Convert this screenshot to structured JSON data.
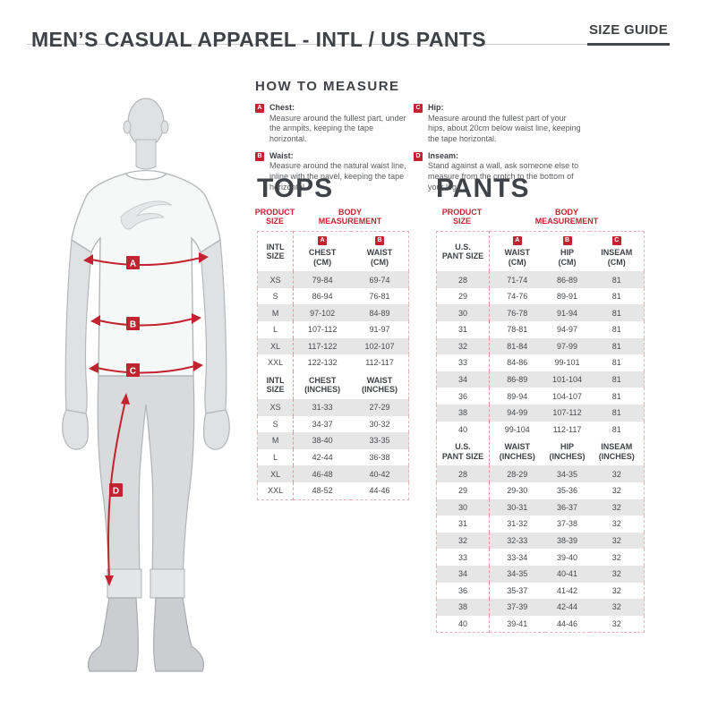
{
  "page": {
    "title": "MEN’S CASUAL APPAREL - INTL / US PANTS",
    "size_guide_label": "SIZE GUIDE"
  },
  "colors": {
    "accent_red": "#c32330",
    "text_dark": "#3f4247",
    "stripe_gray": "#e6e6e6",
    "table_border_pink": "#e6b2b7"
  },
  "figure": {
    "markers": [
      "A",
      "B",
      "C",
      "D"
    ]
  },
  "how_to_measure": {
    "heading": "HOW TO MEASURE",
    "items": [
      {
        "badge": "A",
        "label": "Chest:",
        "text": "Measure around the fullest part, under the armpits, keeping the tape horizontal."
      },
      {
        "badge": "B",
        "label": "Waist:",
        "text": "Measure around the natural waist line, inline with the navel, keeping the tape horizontal."
      },
      {
        "badge": "C",
        "label": "Hip:",
        "text": "Measure around the fullest part of your hips, about 20cm below waist line, keeping the tape horizontal."
      },
      {
        "badge": "D",
        "label": "Inseam:",
        "text": "Stand against a wall, ask someone else to measure from the crotch to the bottom of your leg."
      }
    ]
  },
  "tops": {
    "heading": "TOPS",
    "col1_label": "PRODUCT\nSIZE",
    "col2_label": "BODY\nMEASUREMENT",
    "sections": [
      {
        "type": "header",
        "cells": [
          {
            "text": "INTL\nSIZE"
          },
          {
            "badge": "A",
            "text": "CHEST\n(CM)"
          },
          {
            "badge": "B",
            "text": "WAIST\n(CM)"
          }
        ]
      },
      {
        "type": "row",
        "cells": [
          "XS",
          "79-84",
          "69-74"
        ]
      },
      {
        "type": "row",
        "cells": [
          "S",
          "86-94",
          "76-81"
        ]
      },
      {
        "type": "row",
        "cells": [
          "M",
          "97-102",
          "84-89"
        ]
      },
      {
        "type": "row",
        "cells": [
          "L",
          "107-112",
          "91-97"
        ]
      },
      {
        "type": "row",
        "cells": [
          "XL",
          "117-122",
          "102-107"
        ]
      },
      {
        "type": "row",
        "cells": [
          "XXL",
          "122-132",
          "112-117"
        ]
      },
      {
        "type": "header",
        "cells": [
          {
            "text": "INTL\nSIZE"
          },
          {
            "text": "CHEST\n(INCHES)"
          },
          {
            "text": "WAIST\n(INCHES)"
          }
        ]
      },
      {
        "type": "row",
        "cells": [
          "XS",
          "31-33",
          "27-29"
        ]
      },
      {
        "type": "row",
        "cells": [
          "S",
          "34-37",
          "30-32"
        ]
      },
      {
        "type": "row",
        "cells": [
          "M",
          "38-40",
          "33-35"
        ]
      },
      {
        "type": "row",
        "cells": [
          "L",
          "42-44",
          "36-38"
        ]
      },
      {
        "type": "row",
        "cells": [
          "XL",
          "46-48",
          "40-42"
        ]
      },
      {
        "type": "row",
        "cells": [
          "XXL",
          "48-52",
          "44-46"
        ]
      }
    ]
  },
  "pants": {
    "heading": "PANTS",
    "col1_label": "PRODUCT\nSIZE",
    "col2_label": "BODY\nMEASUREMENT",
    "sections": [
      {
        "type": "header",
        "cells": [
          {
            "text": "U.S.\nPANT SIZE"
          },
          {
            "badge": "A",
            "text": "WAIST\n(CM)"
          },
          {
            "badge": "B",
            "text": "HIP\n(CM)"
          },
          {
            "badge": "C",
            "text": "INSEAM\n(CM)"
          }
        ]
      },
      {
        "type": "row",
        "cells": [
          "28",
          "71-74",
          "86-89",
          "81"
        ]
      },
      {
        "type": "row",
        "cells": [
          "29",
          "74-76",
          "89-91",
          "81"
        ]
      },
      {
        "type": "row",
        "cells": [
          "30",
          "76-78",
          "91-94",
          "81"
        ]
      },
      {
        "type": "row",
        "cells": [
          "31",
          "78-81",
          "94-97",
          "81"
        ]
      },
      {
        "type": "row",
        "cells": [
          "32",
          "81-84",
          "97-99",
          "81"
        ]
      },
      {
        "type": "row",
        "cells": [
          "33",
          "84-86",
          "99-101",
          "81"
        ]
      },
      {
        "type": "row",
        "cells": [
          "34",
          "86-89",
          "101-104",
          "81"
        ]
      },
      {
        "type": "row",
        "cells": [
          "36",
          "89-94",
          "104-107",
          "81"
        ]
      },
      {
        "type": "row",
        "cells": [
          "38",
          "94-99",
          "107-112",
          "81"
        ]
      },
      {
        "type": "row",
        "cells": [
          "40",
          "99-104",
          "112-117",
          "81"
        ]
      },
      {
        "type": "header",
        "cells": [
          {
            "text": "U.S.\nPANT SIZE"
          },
          {
            "text": "WAIST\n(INCHES)"
          },
          {
            "text": "HIP\n(INCHES)"
          },
          {
            "text": "INSEAM\n(INCHES)"
          }
        ]
      },
      {
        "type": "row",
        "cells": [
          "28",
          "28-29",
          "34-35",
          "32"
        ]
      },
      {
        "type": "row",
        "cells": [
          "29",
          "29-30",
          "35-36",
          "32"
        ]
      },
      {
        "type": "row",
        "cells": [
          "30",
          "30-31",
          "36-37",
          "32"
        ]
      },
      {
        "type": "row",
        "cells": [
          "31",
          "31-32",
          "37-38",
          "32"
        ]
      },
      {
        "type": "row",
        "cells": [
          "32",
          "32-33",
          "38-39",
          "32"
        ]
      },
      {
        "type": "row",
        "cells": [
          "33",
          "33-34",
          "39-40",
          "32"
        ]
      },
      {
        "type": "row",
        "cells": [
          "34",
          "34-35",
          "40-41",
          "32"
        ]
      },
      {
        "type": "row",
        "cells": [
          "36",
          "35-37",
          "41-42",
          "32"
        ]
      },
      {
        "type": "row",
        "cells": [
          "38",
          "37-39",
          "42-44",
          "32"
        ]
      },
      {
        "type": "row",
        "cells": [
          "40",
          "39-41",
          "44-46",
          "32"
        ]
      }
    ]
  }
}
